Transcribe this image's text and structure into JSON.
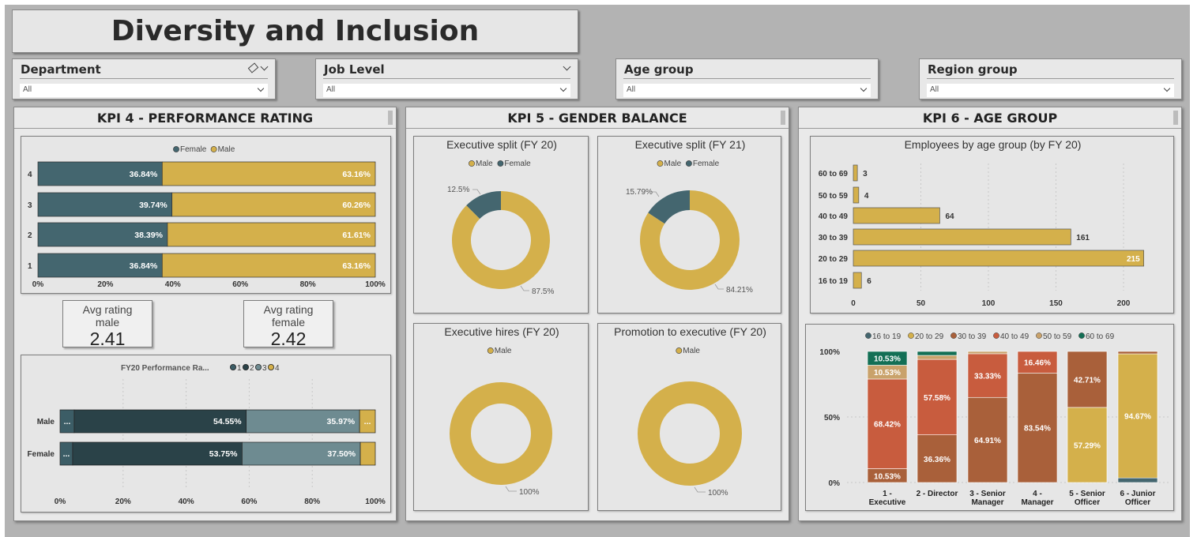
{
  "header": {
    "title": "Diversity and Inclusion"
  },
  "slicers": [
    {
      "label": "Department",
      "value": "All",
      "has_eraser": true
    },
    {
      "label": "Job Level",
      "value": "All",
      "has_eraser": false
    },
    {
      "label": "Age group",
      "value": "All",
      "has_eraser": false
    },
    {
      "label": "Region group",
      "value": "All",
      "has_eraser": false
    }
  ],
  "panels": {
    "kpi4": {
      "title": "KPI 4 - PERFORMANCE RATING"
    },
    "kpi5": {
      "title": "KPI 5 - GENDER BALANCE"
    },
    "kpi6": {
      "title": "KPI 6 - AGE GROUP"
    }
  },
  "kpi_cards": {
    "male": {
      "label_line1": "Avg rating",
      "label_line2": "male",
      "value": "2.41"
    },
    "female": {
      "label_line1": "Avg rating",
      "label_line2": "female",
      "value": "2.42"
    }
  },
  "colors": {
    "female": "#44666f",
    "male": "#d4b04b",
    "rating1": "#3c5d66",
    "rating2": "#2a4248",
    "rating3": "#6e8b91",
    "rating4": "#d4b04b",
    "age_16_19": "#44666f",
    "age_20_29": "#d4b04b",
    "age_30_39": "#a9603a",
    "age_40_49": "#c85c3e",
    "age_50_59": "#c9a26b",
    "age_60_69": "#136f55"
  },
  "chart_data": [
    {
      "id": "perf_rating",
      "type": "bar",
      "orientation": "horizontal-stacked-100",
      "legend": [
        "Female",
        "Male"
      ],
      "legend_placement": "top",
      "categories": [
        "4",
        "3",
        "2",
        "1"
      ],
      "series": [
        {
          "name": "Female",
          "values": [
            36.84,
            39.74,
            38.39,
            36.84
          ],
          "labels": [
            "36.84%",
            "39.74%",
            "38.39%",
            "36.84%"
          ]
        },
        {
          "name": "Male",
          "values": [
            63.16,
            60.26,
            61.61,
            63.16
          ],
          "labels": [
            "63.16%",
            "60.26%",
            "61.61%",
            "63.16%"
          ]
        }
      ],
      "x_ticks": [
        "0%",
        "20%",
        "40%",
        "60%",
        "80%",
        "100%"
      ]
    },
    {
      "id": "fy20_perf",
      "type": "bar",
      "orientation": "horizontal-stacked-100",
      "legend_title": "FY20 Performance Ra...",
      "legend": [
        "1",
        "2",
        "3",
        "4"
      ],
      "categories": [
        "Male",
        "Female"
      ],
      "series": [
        {
          "name": "1",
          "values": [
            4.5,
            4.0
          ],
          "labels": [
            "...",
            "..."
          ]
        },
        {
          "name": "2",
          "values": [
            54.55,
            53.75
          ],
          "labels": [
            "54.55%",
            "53.75%"
          ]
        },
        {
          "name": "3",
          "values": [
            35.97,
            37.5
          ],
          "labels": [
            "35.97%",
            "37.50%"
          ]
        },
        {
          "name": "4",
          "values": [
            4.98,
            4.75
          ],
          "labels": [
            "...",
            ""
          ]
        }
      ],
      "x_ticks": [
        "0%",
        "20%",
        "40%",
        "60%",
        "80%",
        "100%"
      ]
    },
    {
      "id": "exec_split_fy20",
      "type": "pie",
      "title": "Executive split (FY 20)",
      "legend": [
        "Male",
        "Female"
      ],
      "slices": [
        {
          "name": "Male",
          "value": 87.5,
          "label": "87.5%"
        },
        {
          "name": "Female",
          "value": 12.5,
          "label": "12.5%"
        }
      ]
    },
    {
      "id": "exec_split_fy21",
      "type": "pie",
      "title": "Executive split (FY 21)",
      "legend": [
        "Male",
        "Female"
      ],
      "slices": [
        {
          "name": "Male",
          "value": 84.21,
          "label": "84.21%"
        },
        {
          "name": "Female",
          "value": 15.79,
          "label": "15.79%"
        }
      ]
    },
    {
      "id": "exec_hires_fy20",
      "type": "pie",
      "title": "Executive hires (FY 20)",
      "legend": [
        "Male"
      ],
      "slices": [
        {
          "name": "Male",
          "value": 100,
          "label": "100%"
        }
      ]
    },
    {
      "id": "promo_exec_fy20",
      "type": "pie",
      "title": "Promotion to executive (FY 20)",
      "legend": [
        "Male"
      ],
      "slices": [
        {
          "name": "Male",
          "value": 100,
          "label": "100%"
        }
      ]
    },
    {
      "id": "employees_by_age",
      "type": "bar",
      "orientation": "horizontal",
      "title": "Employees by age group (by FY 20)",
      "categories": [
        "60 to 69",
        "50 to 59",
        "40 to 49",
        "30 to 39",
        "20 to 29",
        "16 to 19"
      ],
      "values": [
        3,
        4,
        64,
        161,
        215,
        6
      ],
      "xlim": [
        0,
        220
      ],
      "x_ticks": [
        "0",
        "50",
        "100",
        "150",
        "200"
      ]
    },
    {
      "id": "age_by_level",
      "type": "bar",
      "orientation": "vertical-stacked-100",
      "legend": [
        "16 to 19",
        "20 to 29",
        "30 to 39",
        "40 to 49",
        "50 to 59",
        "60 to 69"
      ],
      "categories": [
        "1 - Executive",
        "2 - Director",
        "3 - Senior Manager",
        "4 - Manager",
        "5 - Senior Officer",
        "6 - Junior Officer"
      ],
      "series": [
        {
          "name": "16 to 19",
          "values": [
            0,
            0,
            0,
            0,
            0,
            3.5
          ]
        },
        {
          "name": "20 to 29",
          "values": [
            0,
            0,
            0,
            0,
            57.29,
            94.67
          ]
        },
        {
          "name": "30 to 39",
          "values": [
            10.53,
            36.36,
            64.91,
            83.54,
            42.71,
            1.83
          ]
        },
        {
          "name": "40 to 49",
          "values": [
            68.42,
            57.58,
            33.33,
            16.46,
            0,
            0
          ]
        },
        {
          "name": "50 to 59",
          "values": [
            10.53,
            3.03,
            1.76,
            0,
            0,
            0
          ]
        },
        {
          "name": "60 to 69",
          "values": [
            10.53,
            3.03,
            0,
            0,
            0,
            0
          ]
        }
      ],
      "data_labels": [
        {
          "category": "1 - Executive",
          "series": "30 to 39",
          "text": "10.53%"
        },
        {
          "category": "1 - Executive",
          "series": "40 to 49",
          "text": "68.42%"
        },
        {
          "category": "1 - Executive",
          "series": "50 to 59",
          "text": "10.53%"
        },
        {
          "category": "1 - Executive",
          "series": "60 to 69",
          "text": "10.53%"
        },
        {
          "category": "2 - Director",
          "series": "30 to 39",
          "text": "36.36%"
        },
        {
          "category": "2 - Director",
          "series": "40 to 49",
          "text": "57.58%"
        },
        {
          "category": "3 - Senior Manager",
          "series": "30 to 39",
          "text": "64.91%"
        },
        {
          "category": "3 - Senior Manager",
          "series": "40 to 49",
          "text": "33.33%"
        },
        {
          "category": "4 - Manager",
          "series": "30 to 39",
          "text": "83.54%"
        },
        {
          "category": "4 - Manager",
          "series": "40 to 49",
          "text": "16.46%"
        },
        {
          "category": "5 - Senior Officer",
          "series": "20 to 29",
          "text": "57.29%"
        },
        {
          "category": "5 - Senior Officer",
          "series": "30 to 39",
          "text": "42.71%"
        },
        {
          "category": "6 - Junior Officer",
          "series": "20 to 29",
          "text": "94.67%"
        }
      ],
      "category_labels": [
        [
          "1 -",
          "Executive"
        ],
        [
          "2 - Director",
          ""
        ],
        [
          "3 - Senior",
          "Manager"
        ],
        [
          "4 -",
          "Manager"
        ],
        [
          "5 - Senior",
          "Officer"
        ],
        [
          "6 - Junior",
          "Officer"
        ]
      ],
      "y_ticks": [
        "100%",
        "50%",
        "0%"
      ]
    }
  ]
}
